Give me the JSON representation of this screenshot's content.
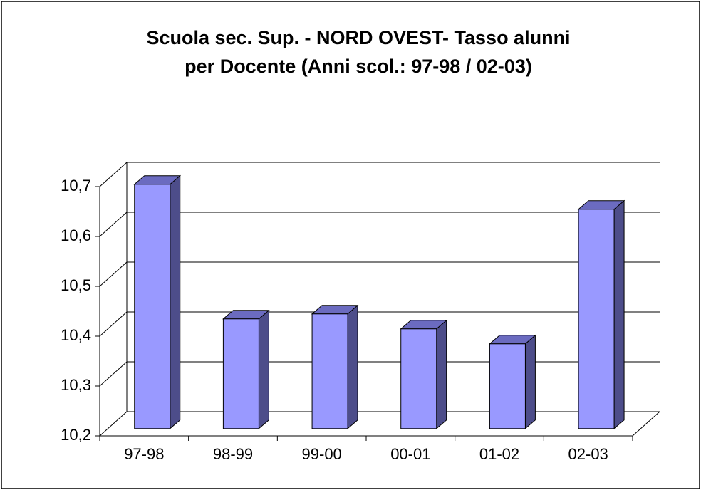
{
  "chart_data": {
    "type": "bar3d",
    "title": "Scuola sec. Sup. - NORD OVEST- Tasso alunni per Docente (Anni scol.: 97-98 / 02-03)",
    "categories": [
      "97-98",
      "98-99",
      "99-00",
      "00-01",
      "01-02",
      "02-03"
    ],
    "values": [
      10.69,
      10.42,
      10.43,
      10.4,
      10.37,
      10.64
    ],
    "color": "#9999ff",
    "ylim": [
      10.2,
      10.7
    ],
    "yticks": [
      {
        "value": 10.2,
        "label": "10,2"
      },
      {
        "value": 10.3,
        "label": "10,3"
      },
      {
        "value": 10.4,
        "label": "10,4"
      },
      {
        "value": 10.5,
        "label": "10,5"
      },
      {
        "value": 10.6,
        "label": "10,6"
      },
      {
        "value": 10.7,
        "label": "10,7"
      }
    ],
    "grid": true
  }
}
